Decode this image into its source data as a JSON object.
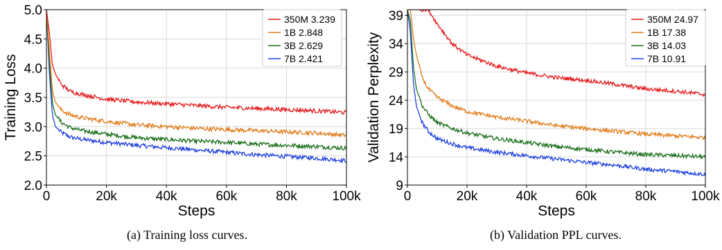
{
  "captions": {
    "a": "(a) Training loss curves.",
    "b": "(b) Validation PPL curves."
  },
  "colors": {
    "350M": "#e41a1c",
    "1B": "#e07b18",
    "3B": "#1a6e1a",
    "7B": "#1f3fe0"
  },
  "chart_data": [
    {
      "type": "line",
      "xlabel": "Steps",
      "ylabel": "Training Loss",
      "xlim": [
        0,
        100000
      ],
      "ylim": [
        2.0,
        5.0
      ],
      "xticks": [
        0,
        20000,
        40000,
        60000,
        80000,
        100000
      ],
      "xtick_labels": [
        "0",
        "20k",
        "40k",
        "60k",
        "80k",
        "100k"
      ],
      "yticks": [
        2.0,
        2.5,
        3.0,
        3.5,
        4.0,
        4.5,
        5.0
      ],
      "ytick_labels": [
        "2.0",
        "2.5",
        "3.0",
        "3.5",
        "4.0",
        "4.5",
        "5.0"
      ],
      "grid": true,
      "legend_position": "top-right",
      "x": [
        0,
        1000,
        2000,
        3000,
        5000,
        8000,
        12000,
        20000,
        30000,
        40000,
        50000,
        60000,
        70000,
        80000,
        90000,
        100000
      ],
      "series": [
        {
          "name": "350M 3.239",
          "key": "350M",
          "values": [
            5.0,
            4.6,
            4.05,
            3.9,
            3.72,
            3.6,
            3.55,
            3.47,
            3.42,
            3.39,
            3.36,
            3.33,
            3.31,
            3.29,
            3.27,
            3.24
          ]
        },
        {
          "name": "1B 2.848",
          "key": "1B",
          "values": [
            5.0,
            4.3,
            3.6,
            3.42,
            3.28,
            3.2,
            3.15,
            3.09,
            3.03,
            3.0,
            2.97,
            2.95,
            2.93,
            2.91,
            2.89,
            2.85
          ]
        },
        {
          "name": "3B 2.629",
          "key": "3B",
          "values": [
            5.0,
            4.1,
            3.4,
            3.2,
            3.07,
            2.98,
            2.93,
            2.87,
            2.81,
            2.78,
            2.75,
            2.73,
            2.7,
            2.68,
            2.66,
            2.63
          ]
        },
        {
          "name": "7B 2.421",
          "key": "7B",
          "values": [
            5.0,
            3.9,
            3.2,
            3.0,
            2.9,
            2.82,
            2.78,
            2.73,
            2.68,
            2.64,
            2.6,
            2.56,
            2.52,
            2.49,
            2.46,
            2.42
          ]
        }
      ]
    },
    {
      "type": "line",
      "xlabel": "Steps",
      "ylabel": "Validation Perplexity",
      "xlim": [
        0,
        100000
      ],
      "ylim": [
        9,
        40
      ],
      "xticks": [
        0,
        20000,
        40000,
        60000,
        80000,
        100000
      ],
      "xtick_labels": [
        "0",
        "20k",
        "40k",
        "60k",
        "80k",
        "100k"
      ],
      "yticks": [
        9,
        14,
        19,
        24,
        29,
        34,
        39
      ],
      "ytick_labels": [
        "9",
        "14",
        "19",
        "24",
        "29",
        "34",
        "39"
      ],
      "grid": true,
      "legend_position": "top-right",
      "x": [
        0,
        1000,
        2000,
        3000,
        5000,
        7000,
        10000,
        15000,
        20000,
        30000,
        40000,
        50000,
        60000,
        70000,
        80000,
        90000,
        100000
      ],
      "series": [
        {
          "name": "350M 24.97",
          "key": "350M",
          "values": [
            40,
            40,
            40,
            40,
            40,
            40,
            37.5,
            34.0,
            32.0,
            30.0,
            28.8,
            28.0,
            27.5,
            26.8,
            26.0,
            25.6,
            25.0
          ]
        },
        {
          "name": "1B 17.38",
          "key": "1B",
          "values": [
            40,
            40,
            35.0,
            32.0,
            28.0,
            26.0,
            24.5,
            23.0,
            22.0,
            21.0,
            20.3,
            19.5,
            19.0,
            18.5,
            18.0,
            17.7,
            17.4
          ]
        },
        {
          "name": "3B 14.03",
          "key": "3B",
          "values": [
            40,
            38.0,
            30.0,
            26.0,
            23.0,
            21.5,
            20.0,
            19.0,
            18.2,
            17.2,
            16.5,
            15.8,
            15.3,
            14.8,
            14.4,
            14.2,
            14.0
          ]
        },
        {
          "name": "7B 10.91",
          "key": "7B",
          "values": [
            40,
            36.0,
            27.0,
            23.0,
            20.0,
            18.5,
            17.2,
            16.3,
            15.6,
            14.8,
            14.2,
            13.6,
            13.0,
            12.5,
            11.8,
            11.4,
            10.9
          ]
        }
      ]
    }
  ]
}
